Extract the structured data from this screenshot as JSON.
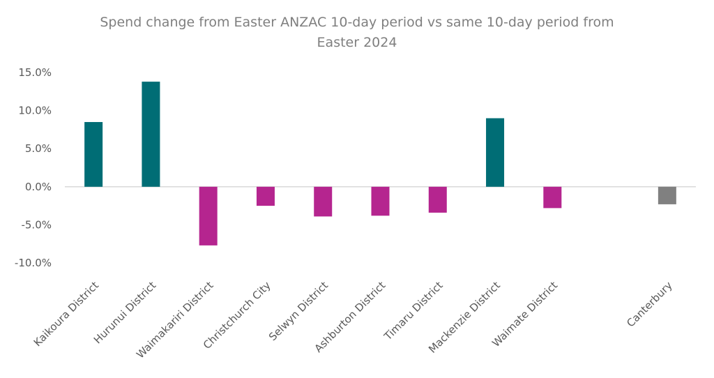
{
  "chart_data": {
    "type": "bar",
    "title_lines": [
      "Spend change from Easter ANZAC 10-day period vs same 10-day period from",
      "Easter 2024"
    ],
    "xlabel": "",
    "ylabel": "",
    "ylim": [
      -10,
      15
    ],
    "y_ticks": [
      15,
      10,
      5,
      0,
      -5,
      -10
    ],
    "y_tick_labels": [
      "15.0%",
      "10.0%",
      "5.0%",
      "0.0%",
      "-5.0%",
      "-10.0%"
    ],
    "grid": false,
    "legend": "none",
    "categories": [
      "Kaikoura District",
      "Hurunui District",
      "Waimakariri District",
      "Christchurch City",
      "Selwyn District",
      "Ashburton District",
      "Timaru District",
      "Mackenzie District",
      "Waimate District",
      "",
      "Canterbury"
    ],
    "values": [
      8.5,
      13.8,
      -7.7,
      -2.5,
      -3.9,
      -3.8,
      -3.4,
      9.0,
      -2.8,
      null,
      -2.3
    ],
    "colors": [
      "#006d75",
      "#006d75",
      "#b5258f",
      "#b5258f",
      "#b5258f",
      "#b5258f",
      "#b5258f",
      "#006d75",
      "#b5258f",
      null,
      "#808080"
    ]
  }
}
